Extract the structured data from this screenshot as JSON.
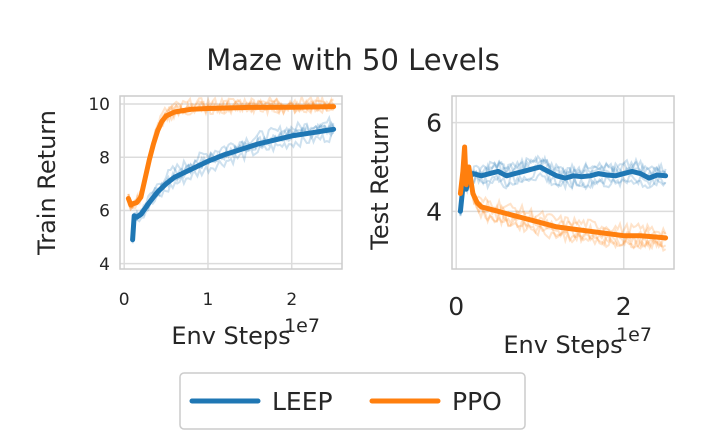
{
  "figure": {
    "title": "Maze with 50 Levels"
  },
  "legend": {
    "location": "bottom-center",
    "entries": [
      {
        "label": "LEEP",
        "color": "#1f77b4"
      },
      {
        "label": "PPO",
        "color": "#ff7f0e"
      }
    ]
  },
  "chart_data": [
    {
      "type": "line",
      "title": "",
      "xlabel": "Env Steps",
      "ylabel": "Train Return",
      "x_offset_label": "1e7",
      "xlim": [
        -0.05,
        2.6
      ],
      "ylim": [
        3.8,
        10.3
      ],
      "xticks": [
        0,
        1,
        2
      ],
      "xtick_labels": [
        "0",
        "1",
        "2"
      ],
      "yticks": [
        4,
        6,
        8,
        10
      ],
      "ytick_labels": [
        "4",
        "6",
        "8",
        "10"
      ],
      "grid": true,
      "series": [
        {
          "name": "LEEP",
          "color": "#1f77b4",
          "x": [
            0.1,
            0.12,
            0.15,
            0.2,
            0.3,
            0.4,
            0.5,
            0.6,
            0.8,
            1.0,
            1.2,
            1.4,
            1.6,
            1.8,
            2.0,
            2.2,
            2.4,
            2.5
          ],
          "y": [
            4.9,
            5.8,
            5.75,
            5.85,
            6.3,
            6.7,
            7.0,
            7.25,
            7.55,
            7.85,
            8.1,
            8.3,
            8.5,
            8.65,
            8.8,
            8.9,
            9.0,
            9.05
          ]
        },
        {
          "name": "PPO",
          "color": "#ff7f0e",
          "x": [
            0.05,
            0.08,
            0.1,
            0.15,
            0.2,
            0.25,
            0.3,
            0.35,
            0.4,
            0.45,
            0.5,
            0.6,
            0.7,
            0.8,
            1.0,
            1.2,
            1.5,
            2.0,
            2.5
          ],
          "y": [
            6.45,
            6.2,
            6.25,
            6.3,
            6.5,
            7.2,
            7.9,
            8.5,
            9.0,
            9.35,
            9.55,
            9.7,
            9.75,
            9.8,
            9.83,
            9.85,
            9.87,
            9.88,
            9.9
          ]
        }
      ]
    },
    {
      "type": "line",
      "title": "",
      "xlabel": "Env Steps",
      "ylabel": "Test Return",
      "x_offset_label": "1e7",
      "xlim": [
        -0.05,
        2.6
      ],
      "ylim": [
        2.7,
        6.6
      ],
      "xticks": [
        0,
        2
      ],
      "xtick_labels": [
        "0",
        "2"
      ],
      "yticks": [
        4,
        6
      ],
      "ytick_labels": [
        "4",
        "6"
      ],
      "grid": true,
      "series": [
        {
          "name": "LEEP",
          "color": "#1f77b4",
          "x": [
            0.05,
            0.08,
            0.1,
            0.12,
            0.15,
            0.2,
            0.3,
            0.4,
            0.5,
            0.6,
            0.7,
            0.8,
            0.9,
            1.0,
            1.1,
            1.2,
            1.3,
            1.4,
            1.5,
            1.6,
            1.7,
            1.8,
            1.9,
            2.0,
            2.1,
            2.2,
            2.3,
            2.4,
            2.5
          ],
          "y": [
            4.0,
            4.55,
            4.7,
            4.5,
            4.75,
            4.85,
            4.8,
            4.85,
            4.9,
            4.8,
            4.85,
            4.9,
            4.95,
            5.0,
            4.9,
            4.8,
            4.75,
            4.8,
            4.78,
            4.8,
            4.85,
            4.82,
            4.8,
            4.85,
            4.9,
            4.85,
            4.75,
            4.82,
            4.8
          ]
        },
        {
          "name": "PPO",
          "color": "#ff7f0e",
          "x": [
            0.05,
            0.08,
            0.1,
            0.12,
            0.15,
            0.2,
            0.25,
            0.3,
            0.4,
            0.5,
            0.6,
            0.7,
            0.8,
            0.9,
            1.0,
            1.2,
            1.4,
            1.6,
            1.8,
            2.0,
            2.2,
            2.4,
            2.5
          ],
          "y": [
            4.4,
            4.9,
            5.45,
            4.6,
            5.0,
            4.4,
            4.2,
            4.1,
            4.05,
            4.0,
            3.95,
            3.9,
            3.85,
            3.8,
            3.75,
            3.65,
            3.6,
            3.55,
            3.5,
            3.45,
            3.45,
            3.42,
            3.4
          ]
        }
      ]
    }
  ]
}
